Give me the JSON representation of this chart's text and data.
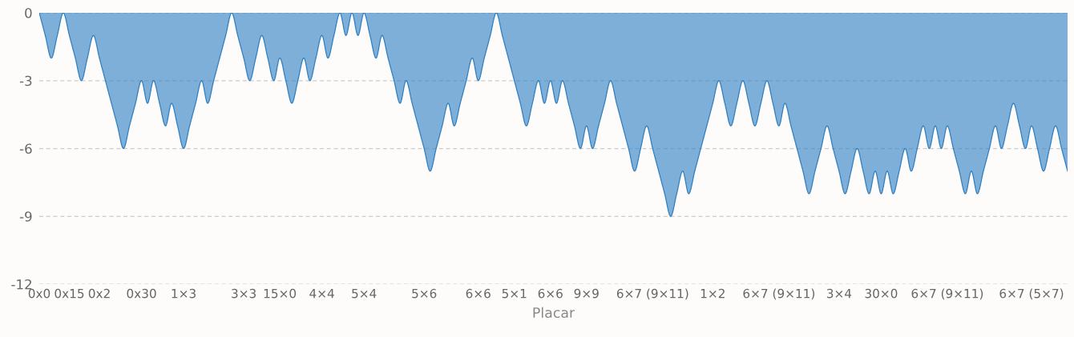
{
  "chart_data": {
    "type": "area",
    "xlabel": "Placar",
    "categories": [
      "0x0",
      null,
      null,
      null,
      null,
      "0x15",
      null,
      null,
      null,
      null,
      "0x2",
      null,
      null,
      null,
      null,
      null,
      null,
      "0x30",
      null,
      null,
      null,
      null,
      null,
      null,
      "1×3",
      null,
      null,
      null,
      null,
      null,
      null,
      null,
      null,
      null,
      "3×3",
      null,
      null,
      null,
      null,
      null,
      "15×0",
      null,
      null,
      null,
      null,
      null,
      null,
      "4×4",
      null,
      null,
      null,
      null,
      null,
      null,
      "5×4",
      null,
      null,
      null,
      null,
      null,
      null,
      null,
      null,
      null,
      "5×6",
      null,
      null,
      null,
      null,
      null,
      null,
      null,
      null,
      "6×6",
      null,
      null,
      null,
      null,
      null,
      "5×1",
      null,
      null,
      null,
      null,
      null,
      "6×6",
      null,
      null,
      null,
      null,
      null,
      "9×9",
      null,
      null,
      null,
      null,
      null,
      null,
      null,
      null,
      null,
      null,
      "6×7 (9×11)",
      null,
      null,
      null,
      null,
      null,
      null,
      null,
      null,
      null,
      "1×2",
      null,
      null,
      null,
      null,
      null,
      null,
      null,
      null,
      null,
      null,
      "6×7 (9×11)",
      null,
      null,
      null,
      null,
      null,
      null,
      null,
      null,
      null,
      "3×4",
      null,
      null,
      null,
      null,
      null,
      null,
      "30×0",
      null,
      null,
      null,
      null,
      null,
      null,
      null,
      null,
      null,
      null,
      "6×7 (9×11)",
      null,
      null,
      null,
      null,
      null,
      null,
      null,
      null,
      null,
      null,
      null,
      null,
      null,
      "6×7 (5×7)",
      null,
      null,
      null,
      null,
      null,
      null
    ],
    "series": [
      {
        "color": "#2f7fc1",
        "values": [
          0,
          -1,
          -2,
          -1,
          0,
          -1,
          -2,
          -3,
          -2,
          -1,
          -2,
          -3,
          -4,
          -5,
          -6,
          -5,
          -4,
          -3,
          -4,
          -3,
          -4,
          -5,
          -4,
          -5,
          -6,
          -5,
          -4,
          -3,
          -4,
          -3,
          -2,
          -1,
          0,
          -1,
          -2,
          -3,
          -2,
          -1,
          -2,
          -3,
          -2,
          -3,
          -4,
          -3,
          -2,
          -3,
          -2,
          -1,
          -2,
          -1,
          0,
          -1,
          0,
          -1,
          0,
          -1,
          -2,
          -1,
          -2,
          -3,
          -4,
          -3,
          -4,
          -5,
          -6,
          -7,
          -6,
          -5,
          -4,
          -5,
          -4,
          -3,
          -2,
          -3,
          -2,
          -1,
          0,
          -1,
          -2,
          -3,
          -4,
          -5,
          -4,
          -3,
          -4,
          -3,
          -4,
          -3,
          -4,
          -5,
          -6,
          -5,
          -6,
          -5,
          -4,
          -3,
          -4,
          -5,
          -6,
          -7,
          -6,
          -5,
          -6,
          -7,
          -8,
          -9,
          -8,
          -7,
          -8,
          -7,
          -6,
          -5,
          -4,
          -3,
          -4,
          -5,
          -4,
          -3,
          -4,
          -5,
          -4,
          -3,
          -4,
          -5,
          -4,
          -5,
          -6,
          -7,
          -8,
          -7,
          -6,
          -5,
          -6,
          -7,
          -8,
          -7,
          -6,
          -7,
          -8,
          -7,
          -8,
          -7,
          -8,
          -7,
          -6,
          -7,
          -6,
          -5,
          -6,
          -5,
          -6,
          -5,
          -6,
          -7,
          -8,
          -7,
          -8,
          -7,
          -6,
          -5,
          -6,
          -5,
          -4,
          -5,
          -6,
          -5,
          -6,
          -7,
          -6,
          -5,
          -6,
          -7
        ]
      }
    ],
    "ylim": [
      -12,
      0
    ],
    "yticks": [
      0,
      -3,
      -6,
      -9,
      -12
    ],
    "grid": "y",
    "legend": false
  }
}
